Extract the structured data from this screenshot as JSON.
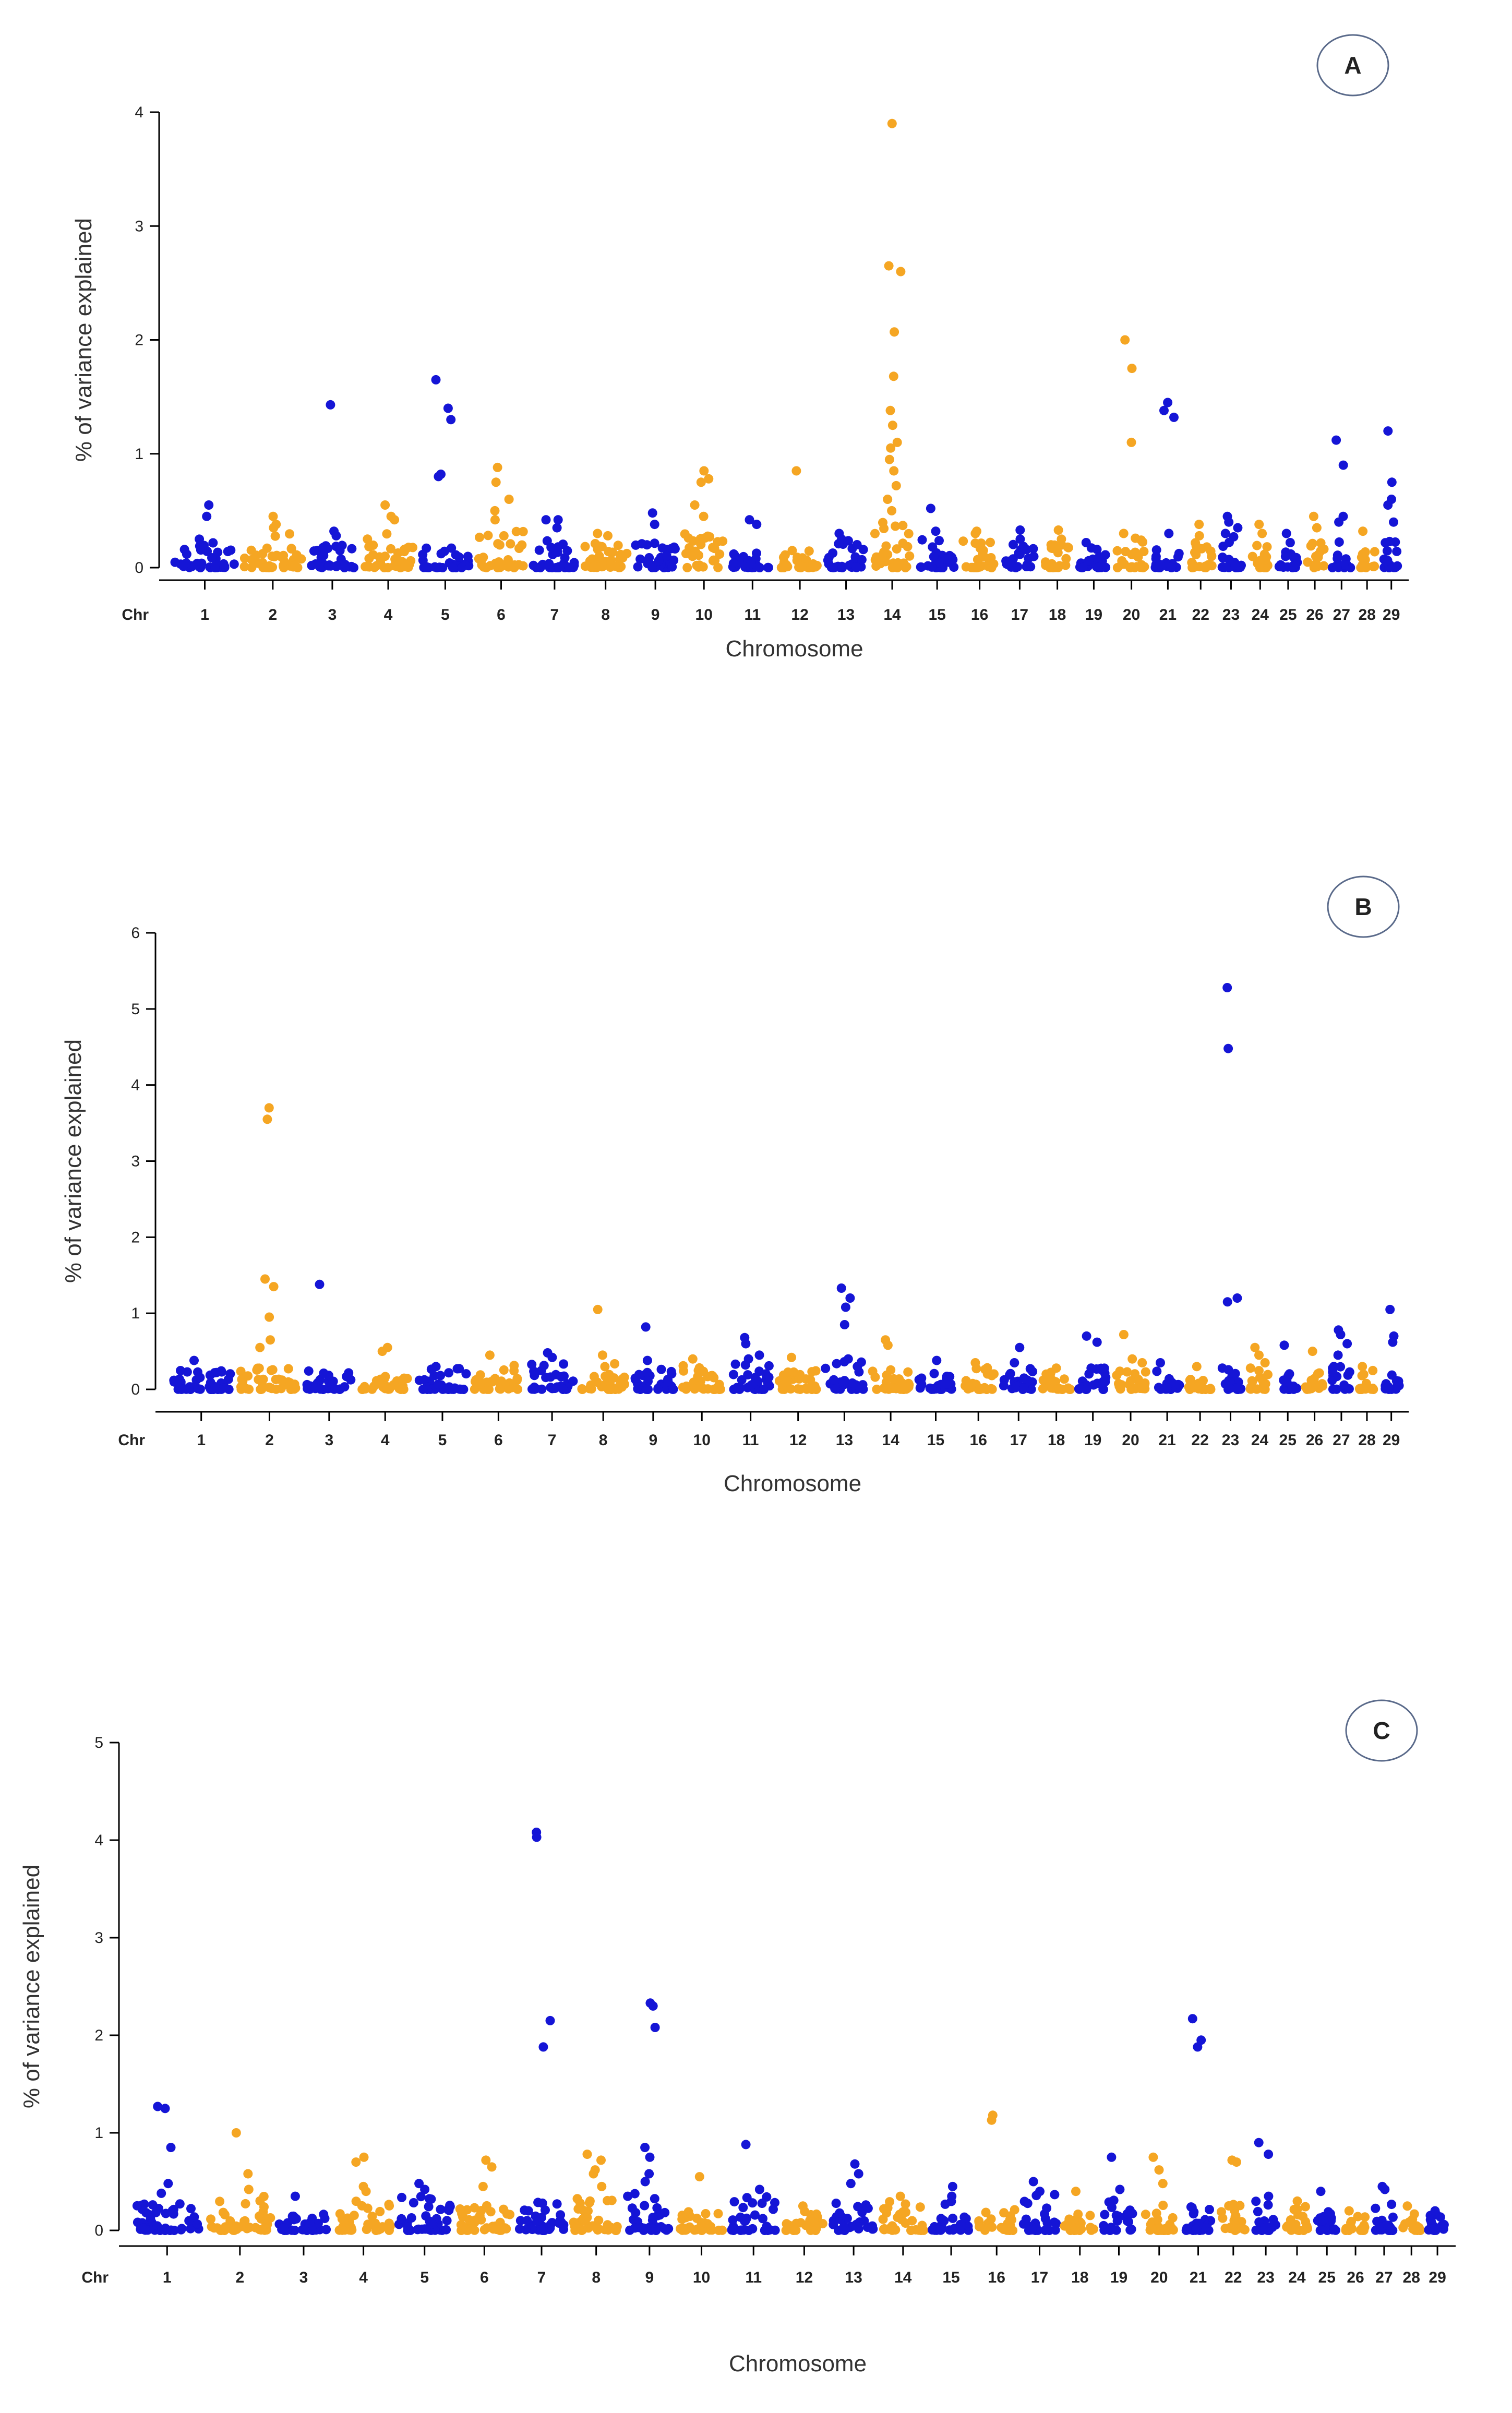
{
  "colors": {
    "blue": "#1515d6",
    "orange": "#f5a623"
  },
  "chart_data": [
    {
      "type": "scatter",
      "panel_label": "A",
      "ylabel": "% of variance explained",
      "xlabel": "Chromosome",
      "chr_prefix": "Chr",
      "ylim": [
        0,
        4
      ],
      "yticks": [
        0,
        1,
        2,
        3,
        4
      ],
      "chromosomes": [
        "1",
        "2",
        "3",
        "4",
        "5",
        "6",
        "7",
        "8",
        "9",
        "10",
        "11",
        "12",
        "13",
        "14",
        "15",
        "16",
        "17",
        "18",
        "19",
        "20",
        "21",
        "22",
        "23",
        "24",
        "25",
        "26",
        "27",
        "28",
        "29"
      ],
      "baseline_max": [
        0.22,
        0.3,
        0.2,
        0.32,
        0.18,
        0.35,
        0.25,
        0.25,
        0.22,
        0.32,
        0.15,
        0.2,
        0.25,
        0.4,
        0.3,
        0.28,
        0.22,
        0.22,
        0.2,
        0.28,
        0.18,
        0.22,
        0.3,
        0.25,
        0.2,
        0.28,
        0.28,
        0.2,
        0.3
      ],
      "highlights": [
        {
          "chr": "1",
          "values": [
            0.55,
            0.45,
            0.25
          ]
        },
        {
          "chr": "2",
          "values": [
            0.45,
            0.38,
            0.35
          ]
        },
        {
          "chr": "3",
          "values": [
            1.43,
            0.32,
            0.28
          ]
        },
        {
          "chr": "4",
          "values": [
            0.55,
            0.45,
            0.42
          ]
        },
        {
          "chr": "5",
          "values": [
            1.65,
            1.4,
            1.3,
            0.82,
            0.8
          ]
        },
        {
          "chr": "6",
          "values": [
            0.88,
            0.75,
            0.6,
            0.5,
            0.42
          ]
        },
        {
          "chr": "7",
          "values": [
            0.42,
            0.42,
            0.35
          ]
        },
        {
          "chr": "8",
          "values": [
            0.3,
            0.28
          ]
        },
        {
          "chr": "9",
          "values": [
            0.48,
            0.38
          ]
        },
        {
          "chr": "10",
          "values": [
            0.85,
            0.78,
            0.75,
            0.55,
            0.45
          ]
        },
        {
          "chr": "11",
          "values": [
            0.42,
            0.38
          ]
        },
        {
          "chr": "12",
          "values": [
            0.85
          ]
        },
        {
          "chr": "13",
          "values": [
            0.3,
            0.25
          ]
        },
        {
          "chr": "14",
          "values": [
            3.9,
            2.65,
            2.6,
            2.07,
            1.68,
            1.38,
            1.25,
            1.1,
            1.05,
            0.95,
            0.85,
            0.72,
            0.6,
            0.5
          ]
        },
        {
          "chr": "15",
          "values": [
            0.52,
            0.32
          ]
        },
        {
          "chr": "16",
          "values": [
            0.32,
            0.3
          ]
        },
        {
          "chr": "17",
          "values": [
            0.33,
            0.25
          ]
        },
        {
          "chr": "18",
          "values": [
            0.33,
            0.25
          ]
        },
        {
          "chr": "19",
          "values": [
            0.22
          ]
        },
        {
          "chr": "20",
          "values": [
            2.0,
            1.75,
            1.1,
            0.3
          ]
        },
        {
          "chr": "21",
          "values": [
            1.45,
            1.38,
            1.32,
            0.3
          ]
        },
        {
          "chr": "22",
          "values": [
            0.38,
            0.28
          ]
        },
        {
          "chr": "23",
          "values": [
            0.45,
            0.4,
            0.35,
            0.3
          ]
        },
        {
          "chr": "24",
          "values": [
            0.38,
            0.3
          ]
        },
        {
          "chr": "25",
          "values": [
            0.3,
            0.22
          ]
        },
        {
          "chr": "26",
          "values": [
            0.45,
            0.35
          ]
        },
        {
          "chr": "27",
          "values": [
            1.12,
            0.9,
            0.45,
            0.4
          ]
        },
        {
          "chr": "28",
          "values": [
            0.32
          ]
        },
        {
          "chr": "29",
          "values": [
            1.2,
            0.75,
            0.6,
            0.55,
            0.4
          ]
        }
      ]
    },
    {
      "type": "scatter",
      "panel_label": "B",
      "ylabel": "% of variance explained",
      "xlabel": "Chromosome",
      "chr_prefix": "Chr",
      "ylim": [
        0,
        6
      ],
      "yticks": [
        0,
        1,
        2,
        3,
        4,
        5,
        6
      ],
      "chromosomes": [
        "1",
        "2",
        "3",
        "4",
        "5",
        "6",
        "7",
        "8",
        "9",
        "10",
        "11",
        "12",
        "13",
        "14",
        "15",
        "16",
        "17",
        "18",
        "19",
        "20",
        "21",
        "22",
        "23",
        "24",
        "25",
        "26",
        "27",
        "28",
        "29"
      ],
      "baseline_max": [
        0.25,
        0.3,
        0.25,
        0.18,
        0.28,
        0.35,
        0.35,
        0.35,
        0.3,
        0.32,
        0.35,
        0.25,
        0.38,
        0.35,
        0.22,
        0.3,
        0.3,
        0.25,
        0.3,
        0.35,
        0.25,
        0.28,
        0.3,
        0.3,
        0.22,
        0.25,
        0.35,
        0.25,
        0.2
      ],
      "highlights": [
        {
          "chr": "1",
          "values": [
            0.38
          ]
        },
        {
          "chr": "2",
          "values": [
            3.7,
            3.55,
            1.45,
            1.35,
            0.95,
            0.65,
            0.55
          ]
        },
        {
          "chr": "3",
          "values": [
            1.38
          ]
        },
        {
          "chr": "4",
          "values": [
            0.55,
            0.5
          ]
        },
        {
          "chr": "5",
          "values": [
            0.3
          ]
        },
        {
          "chr": "6",
          "values": [
            0.45
          ]
        },
        {
          "chr": "7",
          "values": [
            0.48,
            0.42
          ]
        },
        {
          "chr": "8",
          "values": [
            1.05,
            0.45
          ]
        },
        {
          "chr": "9",
          "values": [
            0.82,
            0.38
          ]
        },
        {
          "chr": "10",
          "values": [
            0.4
          ]
        },
        {
          "chr": "11",
          "values": [
            0.68,
            0.6,
            0.45,
            0.4
          ]
        },
        {
          "chr": "12",
          "values": [
            0.42
          ]
        },
        {
          "chr": "13",
          "values": [
            1.33,
            1.2,
            1.08,
            0.85,
            0.4
          ]
        },
        {
          "chr": "14",
          "values": [
            0.65,
            0.58
          ]
        },
        {
          "chr": "15",
          "values": [
            0.38
          ]
        },
        {
          "chr": "16",
          "values": [
            0.35
          ]
        },
        {
          "chr": "17",
          "values": [
            0.55,
            0.35
          ]
        },
        {
          "chr": "18",
          "values": [
            0.28
          ]
        },
        {
          "chr": "19",
          "values": [
            0.7,
            0.62
          ]
        },
        {
          "chr": "20",
          "values": [
            0.72,
            0.4
          ]
        },
        {
          "chr": "21",
          "values": [
            0.35
          ]
        },
        {
          "chr": "22",
          "values": [
            0.3
          ]
        },
        {
          "chr": "23",
          "values": [
            5.28,
            4.48,
            1.2,
            1.15
          ]
        },
        {
          "chr": "24",
          "values": [
            0.55,
            0.45,
            0.35
          ]
        },
        {
          "chr": "25",
          "values": [
            0.58
          ]
        },
        {
          "chr": "26",
          "values": [
            0.5
          ]
        },
        {
          "chr": "27",
          "values": [
            0.78,
            0.72,
            0.6,
            0.45
          ]
        },
        {
          "chr": "28",
          "values": [
            0.3
          ]
        },
        {
          "chr": "29",
          "values": [
            1.05,
            0.7,
            0.62
          ]
        }
      ]
    },
    {
      "type": "scatter",
      "panel_label": "C",
      "ylabel": "% of variance explained",
      "xlabel": "Chromosome",
      "chr_prefix": "Chr",
      "ylim": [
        0,
        5
      ],
      "yticks": [
        0,
        1,
        2,
        3,
        4,
        5
      ],
      "chromosomes": [
        "1",
        "2",
        "3",
        "4",
        "5",
        "6",
        "7",
        "8",
        "9",
        "10",
        "11",
        "12",
        "13",
        "14",
        "15",
        "16",
        "17",
        "18",
        "19",
        "20",
        "21",
        "22",
        "23",
        "24",
        "25",
        "26",
        "27",
        "28",
        "29"
      ],
      "baseline_max": [
        0.3,
        0.35,
        0.18,
        0.3,
        0.35,
        0.28,
        0.3,
        0.35,
        0.4,
        0.22,
        0.35,
        0.2,
        0.3,
        0.3,
        0.3,
        0.25,
        0.38,
        0.28,
        0.35,
        0.28,
        0.25,
        0.28,
        0.3,
        0.25,
        0.25,
        0.18,
        0.32,
        0.22,
        0.18
      ],
      "highlights": [
        {
          "chr": "1",
          "values": [
            1.27,
            1.25,
            0.85,
            0.48,
            0.38
          ]
        },
        {
          "chr": "2",
          "values": [
            1.0,
            0.58,
            0.42
          ]
        },
        {
          "chr": "3",
          "values": [
            0.35
          ]
        },
        {
          "chr": "4",
          "values": [
            0.75,
            0.7,
            0.45,
            0.4
          ]
        },
        {
          "chr": "5",
          "values": [
            0.48,
            0.42
          ]
        },
        {
          "chr": "6",
          "values": [
            0.72,
            0.65,
            0.45
          ]
        },
        {
          "chr": "7",
          "values": [
            4.08,
            4.03,
            2.15,
            1.88
          ]
        },
        {
          "chr": "8",
          "values": [
            0.78,
            0.72,
            0.62,
            0.58,
            0.45
          ]
        },
        {
          "chr": "9",
          "values": [
            2.33,
            2.3,
            2.08,
            0.85,
            0.75,
            0.58,
            0.5
          ]
        },
        {
          "chr": "10",
          "values": [
            0.55
          ]
        },
        {
          "chr": "11",
          "values": [
            0.88,
            0.42
          ]
        },
        {
          "chr": "12",
          "values": [
            0.25
          ]
        },
        {
          "chr": "13",
          "values": [
            0.68,
            0.58,
            0.48
          ]
        },
        {
          "chr": "14",
          "values": [
            0.35
          ]
        },
        {
          "chr": "15",
          "values": [
            0.45,
            0.35
          ]
        },
        {
          "chr": "16",
          "values": [
            1.18,
            1.13
          ]
        },
        {
          "chr": "17",
          "values": [
            0.5,
            0.4
          ]
        },
        {
          "chr": "18",
          "values": [
            0.4
          ]
        },
        {
          "chr": "19",
          "values": [
            0.75,
            0.42
          ]
        },
        {
          "chr": "20",
          "values": [
            0.75,
            0.62,
            0.48
          ]
        },
        {
          "chr": "21",
          "values": [
            2.17,
            1.95,
            1.88
          ]
        },
        {
          "chr": "22",
          "values": [
            0.72,
            0.7
          ]
        },
        {
          "chr": "23",
          "values": [
            0.9,
            0.78,
            0.35
          ]
        },
        {
          "chr": "24",
          "values": [
            0.3
          ]
        },
        {
          "chr": "25",
          "values": [
            0.4
          ]
        },
        {
          "chr": "26",
          "values": [
            0.2
          ]
        },
        {
          "chr": "27",
          "values": [
            0.45,
            0.42
          ]
        },
        {
          "chr": "28",
          "values": [
            0.25
          ]
        },
        {
          "chr": "29",
          "values": [
            0.2
          ]
        }
      ]
    }
  ]
}
